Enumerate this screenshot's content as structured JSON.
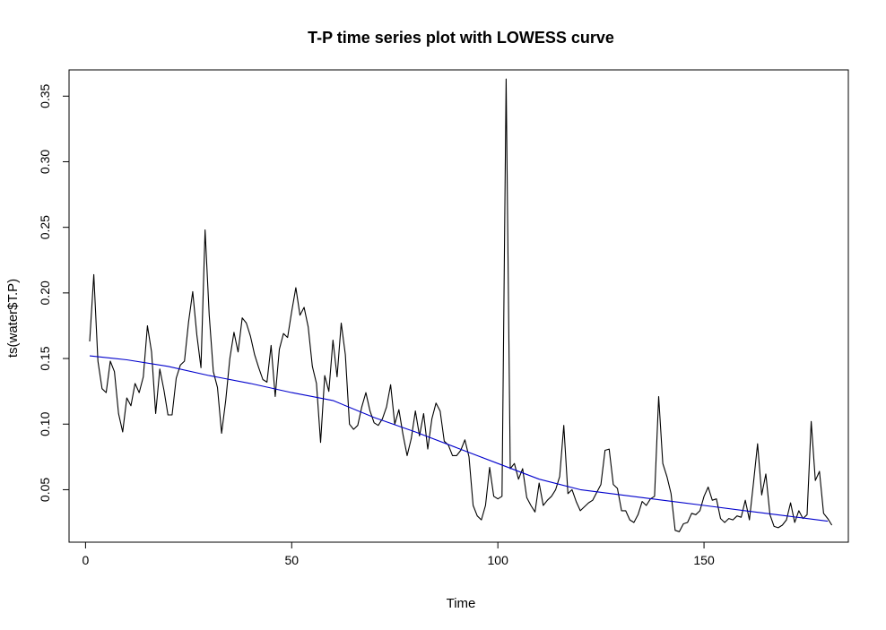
{
  "chart_data": {
    "type": "line",
    "title": "T-P time series plot with LOWESS curve",
    "xlabel": "Time",
    "ylabel": "ts(water$T.P)",
    "xlim": [
      -4,
      185
    ],
    "ylim": [
      0.01,
      0.37
    ],
    "x_ticks": [
      0,
      50,
      100,
      150
    ],
    "y_ticks": [
      0.05,
      0.1,
      0.15,
      0.2,
      0.25,
      0.3,
      0.35
    ],
    "y_tick_labels": [
      "0.05",
      "0.10",
      "0.15",
      "0.20",
      "0.25",
      "0.30",
      "0.35"
    ],
    "x_tick_labels": [
      "0",
      "50",
      "100",
      "150"
    ],
    "grid": false,
    "series": [
      {
        "color": "#000000",
        "x_start": 1,
        "values": [
          0.163,
          0.214,
          0.148,
          0.127,
          0.124,
          0.148,
          0.14,
          0.108,
          0.094,
          0.12,
          0.114,
          0.131,
          0.124,
          0.136,
          0.175,
          0.155,
          0.108,
          0.142,
          0.126,
          0.107,
          0.107,
          0.135,
          0.145,
          0.148,
          0.178,
          0.201,
          0.168,
          0.143,
          0.248,
          0.183,
          0.14,
          0.128,
          0.093,
          0.118,
          0.15,
          0.17,
          0.155,
          0.181,
          0.177,
          0.167,
          0.153,
          0.143,
          0.134,
          0.132,
          0.16,
          0.121,
          0.157,
          0.169,
          0.166,
          0.186,
          0.204,
          0.183,
          0.189,
          0.174,
          0.144,
          0.131,
          0.086,
          0.137,
          0.125,
          0.164,
          0.136,
          0.177,
          0.153,
          0.1,
          0.096,
          0.099,
          0.113,
          0.124,
          0.11,
          0.101,
          0.099,
          0.104,
          0.113,
          0.13,
          0.1,
          0.111,
          0.092,
          0.076,
          0.089,
          0.11,
          0.091,
          0.108,
          0.081,
          0.104,
          0.116,
          0.11,
          0.087,
          0.084,
          0.076,
          0.076,
          0.08,
          0.088,
          0.075,
          0.038,
          0.03,
          0.027,
          0.038,
          0.067,
          0.045,
          0.043,
          0.045,
          0.363,
          0.066,
          0.07,
          0.058,
          0.066,
          0.044,
          0.038,
          0.033,
          0.055,
          0.038,
          0.042,
          0.045,
          0.05,
          0.06,
          0.099,
          0.047,
          0.05,
          0.041,
          0.034,
          0.037,
          0.04,
          0.042,
          0.048,
          0.054,
          0.08,
          0.081,
          0.054,
          0.051,
          0.034,
          0.034,
          0.027,
          0.025,
          0.031,
          0.041,
          0.038,
          0.043,
          0.045,
          0.121,
          0.07,
          0.06,
          0.047,
          0.019,
          0.018,
          0.024,
          0.025,
          0.032,
          0.031,
          0.034,
          0.045,
          0.052,
          0.042,
          0.043,
          0.028,
          0.025,
          0.028,
          0.027,
          0.03,
          0.029,
          0.042,
          0.027,
          0.055,
          0.085,
          0.046,
          0.062,
          0.031,
          0.022,
          0.021,
          0.023,
          0.027,
          0.04,
          0.025,
          0.034,
          0.028,
          0.031,
          0.102,
          0.057,
          0.064,
          0.032,
          0.028,
          0.023
        ]
      },
      {
        "color": "#0000cc",
        "x": [
          1,
          10,
          20,
          30,
          40,
          50,
          60,
          70,
          80,
          90,
          100,
          110,
          120,
          130,
          140,
          150,
          160,
          170,
          180
        ],
        "values": [
          0.152,
          0.149,
          0.144,
          0.137,
          0.131,
          0.124,
          0.118,
          0.105,
          0.094,
          0.082,
          0.07,
          0.058,
          0.05,
          0.046,
          0.042,
          0.038,
          0.034,
          0.03,
          0.026
        ]
      }
    ]
  }
}
